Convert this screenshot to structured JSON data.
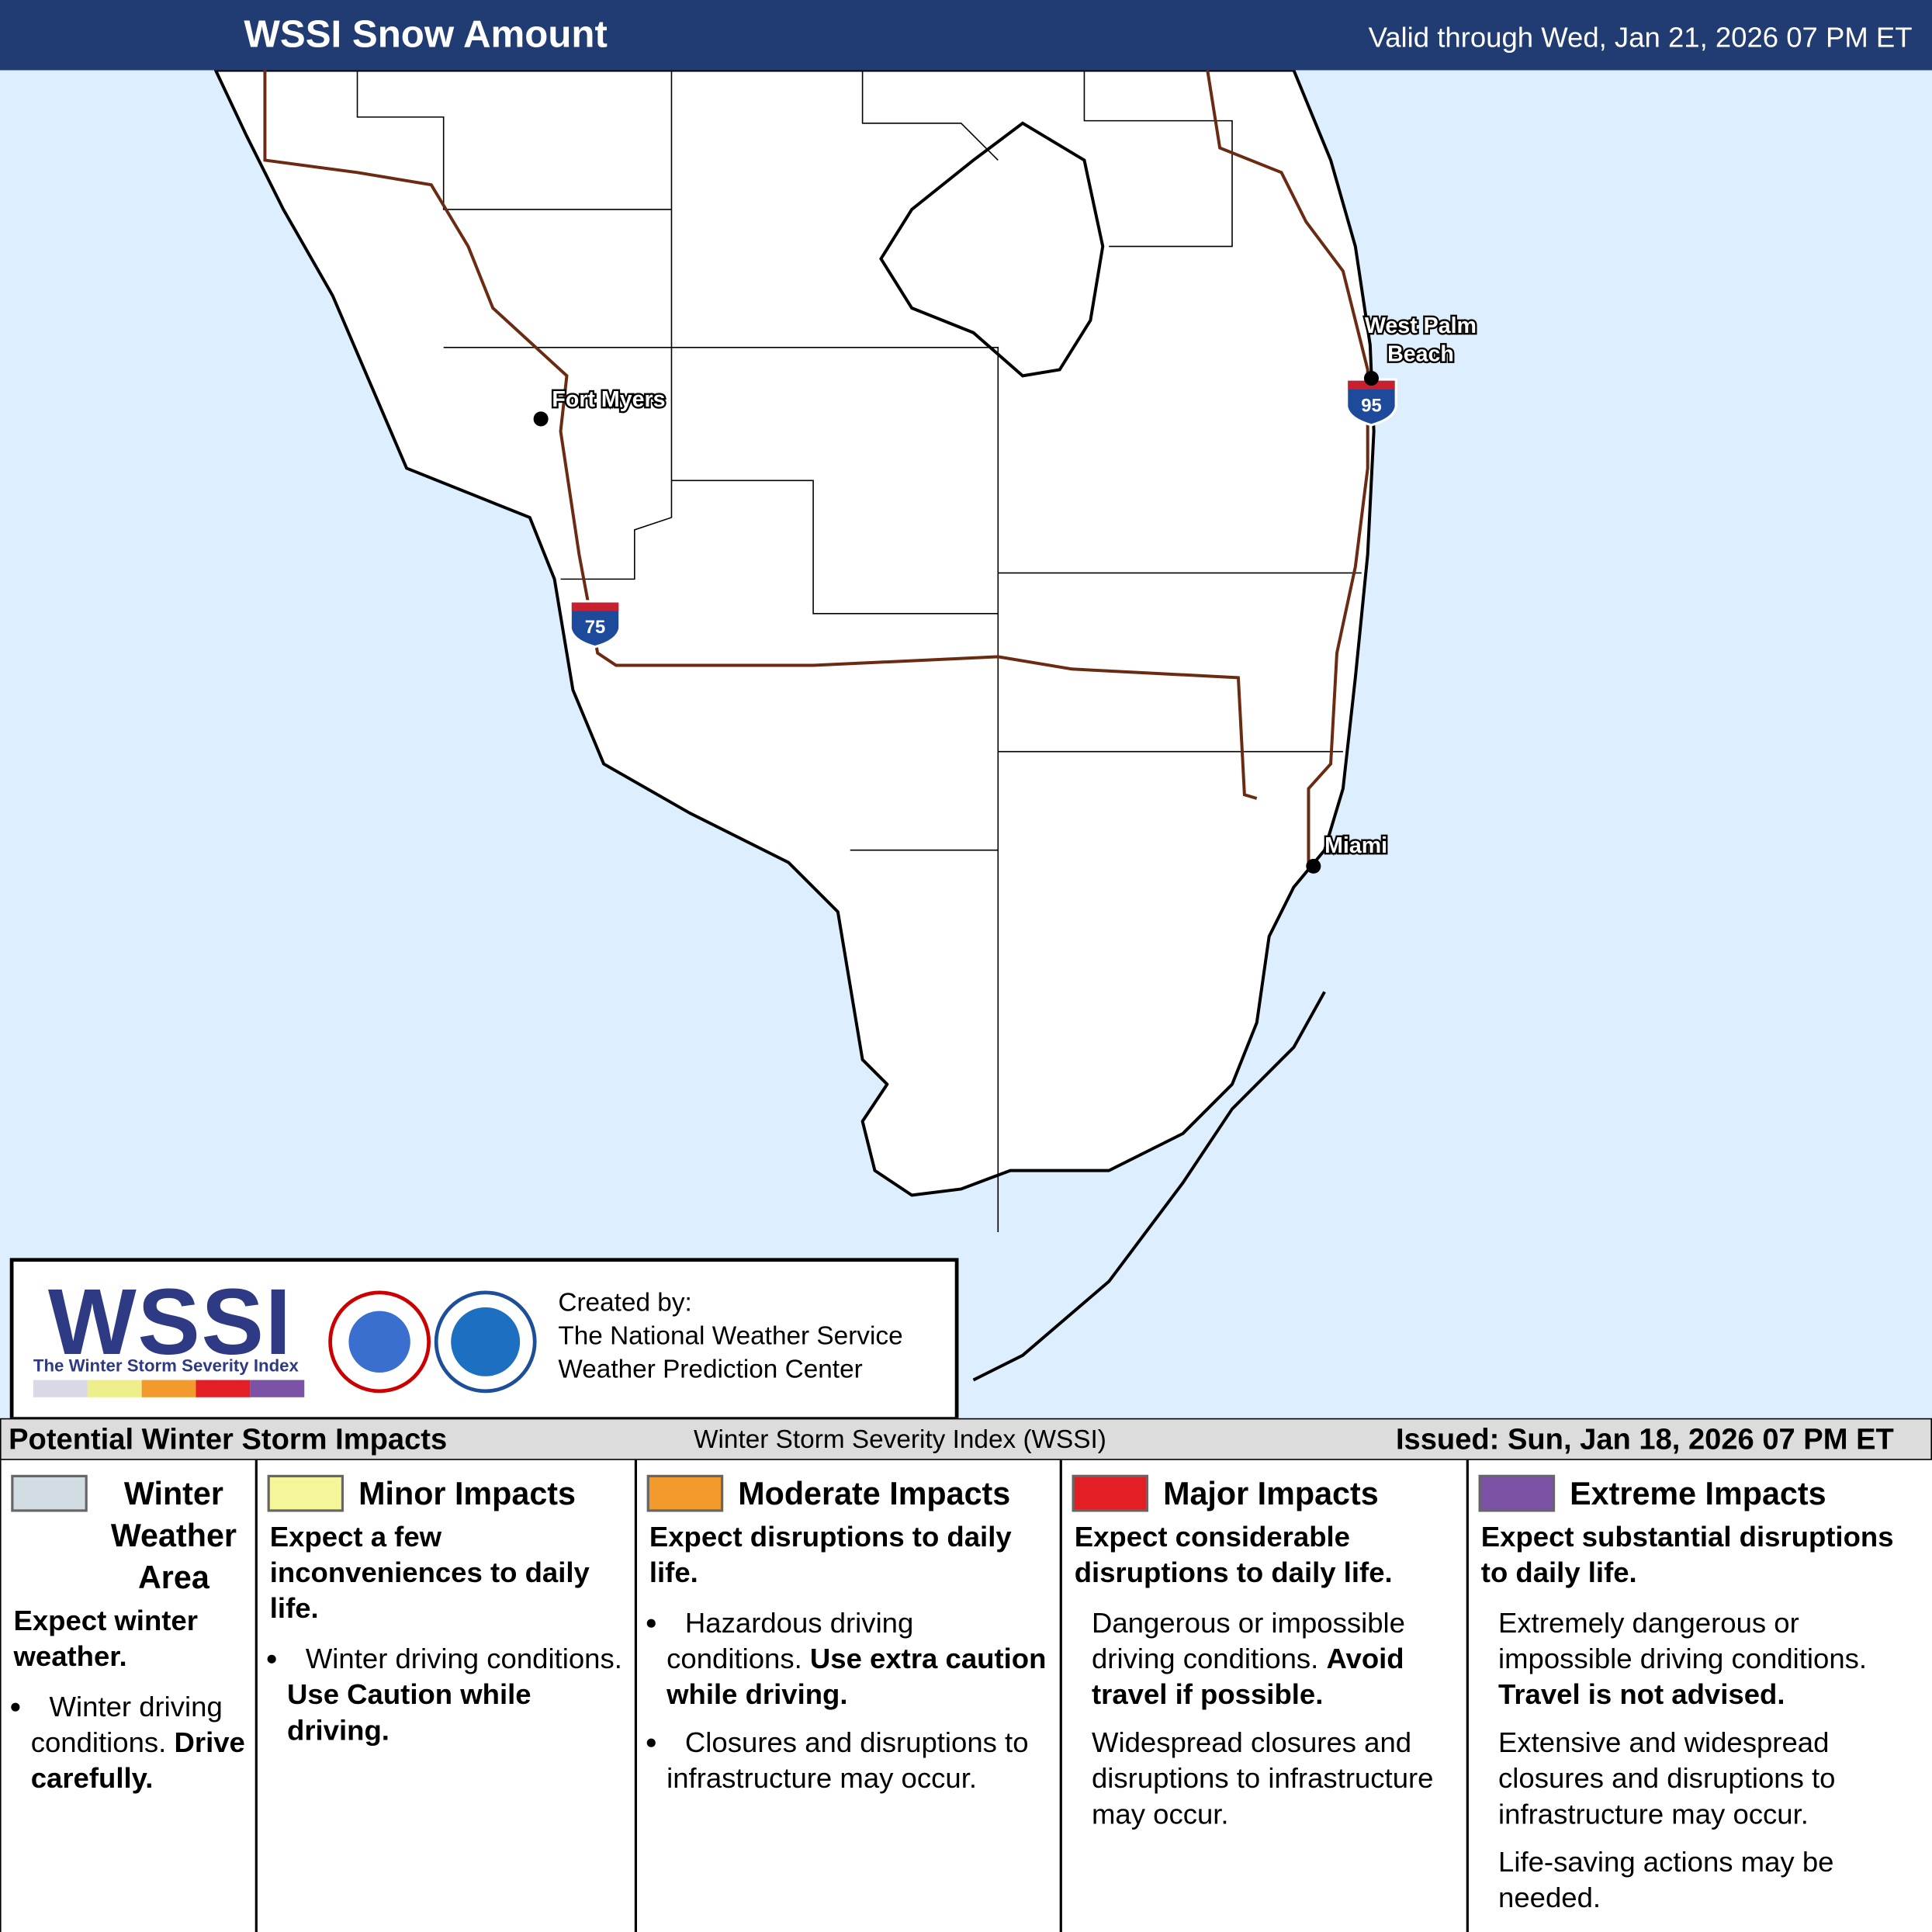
{
  "header": {
    "title": "WSSI Snow Amount",
    "valid": "Valid through Wed, Jan 21, 2026 07 PM ET"
  },
  "map": {
    "cities": [
      {
        "lines": [
          "Fort Myers"
        ]
      },
      {
        "lines": [
          "West Palm",
          "Beach"
        ]
      },
      {
        "lines": [
          "Miami"
        ]
      }
    ],
    "highways": [
      {
        "label": "75"
      },
      {
        "label": "95"
      }
    ]
  },
  "logo": {
    "wssi": "WSSI",
    "subtitle": "The Winter Storm Severity Index",
    "credit": [
      "Created by:",
      "The National Weather Service",
      "Weather Prediction Center"
    ]
  },
  "legend": {
    "title": "Potential Winter Storm Impacts",
    "center": "Winter Storm Severity Index (WSSI)",
    "issued": "Issued: Sun, Jan 18, 2026 07 PM ET",
    "columns": [
      {
        "name": "Winter Weather Area",
        "color": "#d1dde3",
        "summary": "Expect winter weather.",
        "paragraphs": [
          {
            "text": "Winter driving conditions.",
            "bold": "Drive carefully."
          }
        ]
      },
      {
        "name": "Minor Impacts",
        "color": "#f5f59a",
        "summary": "Expect a few inconveniences to daily life.",
        "paragraphs": [
          {
            "text": "Winter driving conditions.",
            "bold": "Use Caution while driving."
          }
        ]
      },
      {
        "name": "Moderate Impacts",
        "color": "#f39a2d",
        "summary": "Expect disruptions to daily life.",
        "paragraphs": [
          {
            "text": "Hazardous driving conditions.",
            "bold": "Use extra caution while driving."
          },
          {
            "text": "Closures and disruptions to infrastructure may occur."
          }
        ]
      },
      {
        "name": "Major Impacts",
        "color": "#e31e25",
        "summary": "Expect considerable disruptions to daily life.",
        "paragraphs": [
          {
            "text": "Dangerous or impossible driving conditions.",
            "bold": "Avoid travel if possible."
          },
          {
            "text": "Widespread closures and disruptions to infrastructure may occur."
          }
        ]
      },
      {
        "name": "Extreme Impacts",
        "color": "#7b52a6",
        "summary": "Expect substantial disruptions to daily life.",
        "paragraphs": [
          {
            "text": "Extremely dangerous or impossible driving conditions.",
            "bold": "Travel is not advised."
          },
          {
            "text": "Extensive and widespread closures and disruptions to infrastructure may occur."
          },
          {
            "text": "Life-saving actions may be needed."
          }
        ]
      }
    ]
  }
}
